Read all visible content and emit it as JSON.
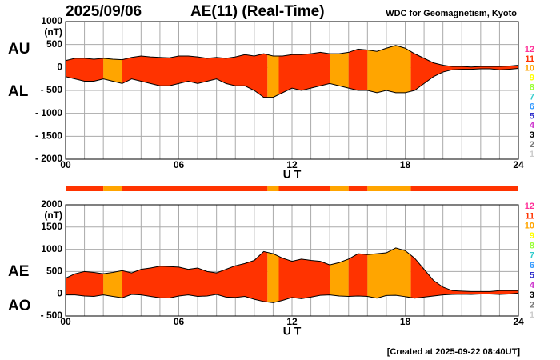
{
  "header": {
    "date": "2025/09/06",
    "title": "AE(11) (Real-Time)",
    "source": "WDC for Geomagnetism, Kyoto"
  },
  "footer": "[Created at 2025-09-22 08:40UT]",
  "activity": {
    "segments": [
      {
        "start": 0,
        "end": 2,
        "level": 11
      },
      {
        "start": 2,
        "end": 3,
        "level": 10
      },
      {
        "start": 3,
        "end": 10.7,
        "level": 11
      },
      {
        "start": 10.7,
        "end": 11.3,
        "level": 10
      },
      {
        "start": 11.3,
        "end": 14,
        "level": 11
      },
      {
        "start": 14,
        "end": 15,
        "level": 10
      },
      {
        "start": 15,
        "end": 16,
        "level": 11
      },
      {
        "start": 16,
        "end": 18.3,
        "level": 10
      },
      {
        "start": 18.3,
        "end": 24,
        "level": 11
      }
    ],
    "levels": [
      {
        "label": 12,
        "color": "#ff3399"
      },
      {
        "label": 11,
        "color": "#ff3300"
      },
      {
        "label": 10,
        "color": "#ffa500"
      },
      {
        "label": 9,
        "color": "#ffff00"
      },
      {
        "label": 8,
        "color": "#99ff33"
      },
      {
        "label": 7,
        "color": "#33cccc"
      },
      {
        "label": 6,
        "color": "#3399ff"
      },
      {
        "label": 5,
        "color": "#3333cc"
      },
      {
        "label": 4,
        "color": "#cc33cc"
      },
      {
        "label": 3,
        "color": "#000000"
      },
      {
        "label": 2,
        "color": "#777777"
      },
      {
        "label": 1,
        "color": "#cccccc"
      }
    ]
  },
  "chart_data": [
    {
      "type": "area",
      "y_unit": "(nT)",
      "xlabel": "U T",
      "x": [
        0,
        0.5,
        1,
        1.5,
        2,
        2.5,
        3,
        3.5,
        4,
        4.5,
        5,
        5.5,
        6,
        6.5,
        7,
        7.5,
        8,
        8.5,
        9,
        9.5,
        10,
        10.5,
        11,
        11.5,
        12,
        12.5,
        13,
        13.5,
        14,
        14.5,
        15,
        15.5,
        16,
        16.5,
        17,
        17.5,
        18,
        18.5,
        19,
        19.5,
        20,
        20.5,
        21,
        21.5,
        22,
        22.5,
        23,
        23.5,
        24
      ],
      "series": [
        {
          "name": "AU",
          "color": "#000000",
          "values": [
            150,
            200,
            200,
            180,
            200,
            180,
            170,
            220,
            250,
            230,
            220,
            210,
            250,
            250,
            230,
            200,
            220,
            200,
            230,
            280,
            250,
            300,
            250,
            250,
            280,
            280,
            300,
            330,
            300,
            300,
            330,
            400,
            380,
            350,
            420,
            480,
            420,
            300,
            200,
            100,
            50,
            20,
            20,
            10,
            20,
            20,
            20,
            30,
            50
          ]
        },
        {
          "name": "AL",
          "color": "#000000",
          "values": [
            -200,
            -250,
            -300,
            -300,
            -250,
            -300,
            -350,
            -250,
            -300,
            -350,
            -400,
            -400,
            -350,
            -300,
            -350,
            -300,
            -250,
            -350,
            -400,
            -400,
            -500,
            -650,
            -650,
            -550,
            -450,
            -500,
            -450,
            -400,
            -350,
            -400,
            -450,
            -500,
            -500,
            -550,
            -500,
            -550,
            -550,
            -500,
            -350,
            -200,
            -100,
            -50,
            -40,
            -40,
            -30,
            -30,
            -50,
            -40,
            -20
          ]
        }
      ],
      "xlim": [
        0,
        24
      ],
      "xticks": [
        {
          "value": 0,
          "label": "00"
        },
        {
          "value": 6,
          "label": "06"
        },
        12,
        18,
        24
      ],
      "xgrid": [
        0,
        1,
        2,
        3,
        4,
        5,
        6,
        7,
        8,
        9,
        10,
        11,
        12,
        13,
        14,
        15,
        16,
        17,
        18,
        19,
        20,
        21,
        22,
        23,
        24
      ],
      "ylim": [
        -2000,
        1000
      ],
      "yticks": [
        1000,
        500,
        0,
        {
          "value": -500,
          "label": "- 500"
        },
        {
          "value": -1000,
          "label": "- 1000"
        },
        {
          "value": -1500,
          "label": "- 1500"
        },
        {
          "value": -2000,
          "label": "- 2000"
        }
      ],
      "grid": true
    },
    {
      "type": "area",
      "y_unit": "(nT)",
      "xlabel": "U T",
      "x": [
        0,
        0.5,
        1,
        1.5,
        2,
        2.5,
        3,
        3.5,
        4,
        4.5,
        5,
        5.5,
        6,
        6.5,
        7,
        7.5,
        8,
        8.5,
        9,
        9.5,
        10,
        10.5,
        11,
        11.5,
        12,
        12.5,
        13,
        13.5,
        14,
        14.5,
        15,
        15.5,
        16,
        16.5,
        17,
        17.5,
        18,
        18.5,
        19,
        19.5,
        20,
        20.5,
        21,
        21.5,
        22,
        22.5,
        23,
        23.5,
        24
      ],
      "series": [
        {
          "name": "AE",
          "color": "#000000",
          "values": [
            350,
            450,
            500,
            480,
            450,
            480,
            520,
            470,
            550,
            580,
            620,
            610,
            600,
            550,
            580,
            500,
            470,
            550,
            630,
            680,
            750,
            950,
            900,
            800,
            730,
            780,
            750,
            730,
            650,
            700,
            780,
            900,
            880,
            900,
            920,
            1030,
            970,
            800,
            550,
            300,
            150,
            70,
            60,
            50,
            50,
            50,
            70,
            70,
            70
          ]
        },
        {
          "name": "AO",
          "color": "#000000",
          "values": [
            -25,
            -25,
            -50,
            -60,
            -25,
            -60,
            -90,
            -15,
            -25,
            -60,
            -90,
            -95,
            -50,
            -25,
            -60,
            -50,
            -15,
            -75,
            -85,
            -60,
            -125,
            -175,
            -200,
            -150,
            -85,
            -110,
            -75,
            -35,
            -25,
            -50,
            -60,
            -50,
            -60,
            -100,
            -40,
            -35,
            -65,
            -100,
            -75,
            -50,
            -25,
            -15,
            -10,
            -15,
            -5,
            -5,
            -15,
            -5,
            15
          ]
        }
      ],
      "xlim": [
        0,
        24
      ],
      "xticks": [
        {
          "value": 0,
          "label": "00"
        },
        {
          "value": 6,
          "label": "06"
        },
        12,
        18,
        24
      ],
      "xgrid": [
        0,
        1,
        2,
        3,
        4,
        5,
        6,
        7,
        8,
        9,
        10,
        11,
        12,
        13,
        14,
        15,
        16,
        17,
        18,
        19,
        20,
        21,
        22,
        23,
        24
      ],
      "ylim": [
        -500,
        2000
      ],
      "yticks": [
        2000,
        1500,
        1000,
        500,
        0,
        {
          "value": -500,
          "label": "- 500"
        }
      ],
      "grid": true
    }
  ]
}
